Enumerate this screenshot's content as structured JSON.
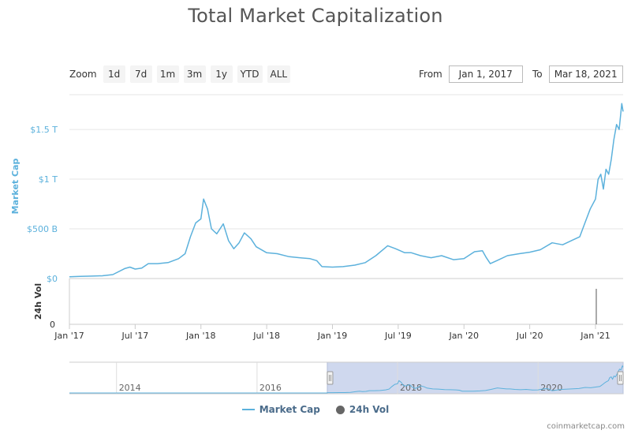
{
  "title": "Total Market Capitalization",
  "zoom": {
    "label": "Zoom",
    "buttons": [
      "1d",
      "7d",
      "1m",
      "3m",
      "1y",
      "YTD",
      "ALL"
    ]
  },
  "range": {
    "from_label": "From",
    "from_value": "Jan 1, 2017",
    "to_label": "To",
    "to_value": "Mar 18, 2021"
  },
  "legend": {
    "market_cap": "Market Cap",
    "vol": "24h Vol"
  },
  "credit": "coinmarketcap.com",
  "colors": {
    "market_cap": "#5cb1dc",
    "volume": "#555555",
    "navigator_fill": "#cfd8ee",
    "grid": "#e6e6e6"
  },
  "chart_data": {
    "type": "line",
    "ylabel": "Market Cap",
    "ylabel_volume": "24h Vol",
    "y_ticks": [
      "$0",
      "$500 B",
      "$1 T",
      "$1.5 T"
    ],
    "y_tick_values": [
      0,
      500,
      1000,
      1500
    ],
    "volume_ticks": [
      "0"
    ],
    "ylim": [
      0,
      1850
    ],
    "x_ticks": [
      "Jan '17",
      "Jul '17",
      "Jan '18",
      "Jul '18",
      "Jan '19",
      "Jul '19",
      "Jan '20",
      "Jul '20",
      "Jan '21"
    ],
    "x_tick_years": [
      2017,
      2017.5,
      2018,
      2018.5,
      2019,
      2019.5,
      2020,
      2020.5,
      2021
    ],
    "xlim": [
      2017.0,
      2021.21
    ],
    "navigator_ticks": [
      "2014",
      "2016",
      "2018",
      "2020"
    ],
    "navigator_tick_years": [
      2014,
      2016,
      2018,
      2020
    ],
    "navigator_xlim": [
      2013.33,
      2021.21
    ],
    "navigator_selection": [
      2017.0,
      2021.21
    ],
    "series": [
      {
        "name": "Market Cap",
        "x": [
          2017.0,
          2017.08,
          2017.17,
          2017.25,
          2017.33,
          2017.42,
          2017.46,
          2017.5,
          2017.55,
          2017.6,
          2017.67,
          2017.75,
          2017.83,
          2017.88,
          2017.92,
          2017.96,
          2018.0,
          2018.02,
          2018.05,
          2018.08,
          2018.12,
          2018.17,
          2018.21,
          2018.25,
          2018.29,
          2018.33,
          2018.38,
          2018.42,
          2018.5,
          2018.58,
          2018.67,
          2018.75,
          2018.83,
          2018.88,
          2018.92,
          2019.0,
          2019.08,
          2019.17,
          2019.25,
          2019.33,
          2019.42,
          2019.48,
          2019.55,
          2019.6,
          2019.67,
          2019.75,
          2019.83,
          2019.92,
          2020.0,
          2020.08,
          2020.14,
          2020.17,
          2020.2,
          2020.25,
          2020.33,
          2020.42,
          2020.5,
          2020.58,
          2020.67,
          2020.75,
          2020.83,
          2020.88,
          2020.92,
          2020.96,
          2021.0,
          2021.02,
          2021.04,
          2021.06,
          2021.08,
          2021.1,
          2021.12,
          2021.14,
          2021.16,
          2021.18,
          2021.2,
          2021.21
        ],
        "values": [
          18,
          22,
          25,
          28,
          40,
          100,
          115,
          95,
          105,
          150,
          150,
          160,
          200,
          250,
          420,
          560,
          600,
          800,
          700,
          500,
          450,
          550,
          380,
          300,
          360,
          460,
          400,
          320,
          260,
          250,
          220,
          210,
          200,
          180,
          120,
          115,
          120,
          135,
          160,
          230,
          330,
          300,
          260,
          260,
          230,
          210,
          230,
          190,
          200,
          270,
          280,
          210,
          150,
          180,
          230,
          250,
          265,
          290,
          360,
          340,
          390,
          420,
          560,
          700,
          800,
          1000,
          1050,
          900,
          1100,
          1050,
          1200,
          1400,
          1550,
          1500,
          1760,
          1680
        ]
      },
      {
        "name": "24h Vol",
        "x": [
          2021.0
        ],
        "values": [
          1
        ]
      }
    ]
  }
}
